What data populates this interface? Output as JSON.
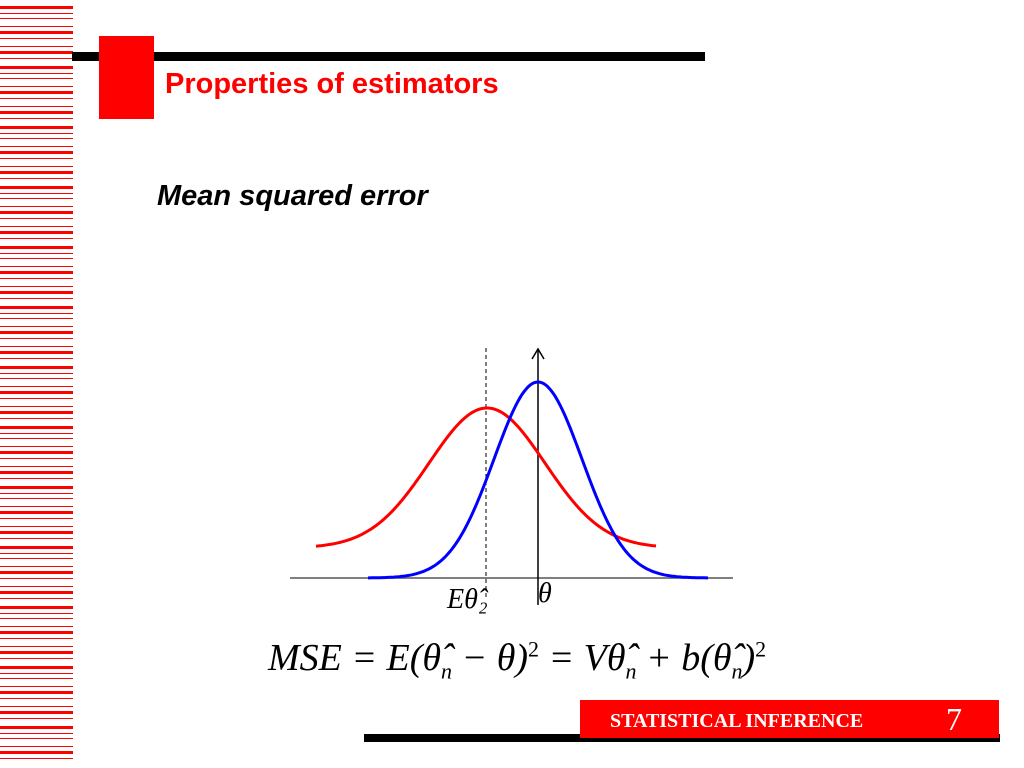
{
  "slide": {
    "title": "Properties of estimators",
    "subtitle": "Mean squared error",
    "footer_text": "STATISTICAL INFERENCE",
    "page_number": "7"
  },
  "figure": {
    "label_expected": "Eθ̂₂",
    "label_theta": "θ",
    "curve_colors": {
      "biased_estimator": "#ff0000",
      "other_estimator": "#0000ff"
    }
  },
  "formula": {
    "lhs": "MSE = E(",
    "theta_hat": "θ̂",
    "sub_n": "n",
    "mid": " − θ)",
    "sq": "2",
    "eq2": " = V",
    "plus_b": " + b(",
    "close": ")"
  },
  "colors": {
    "accent": "#ff0000",
    "bar": "#000000"
  }
}
